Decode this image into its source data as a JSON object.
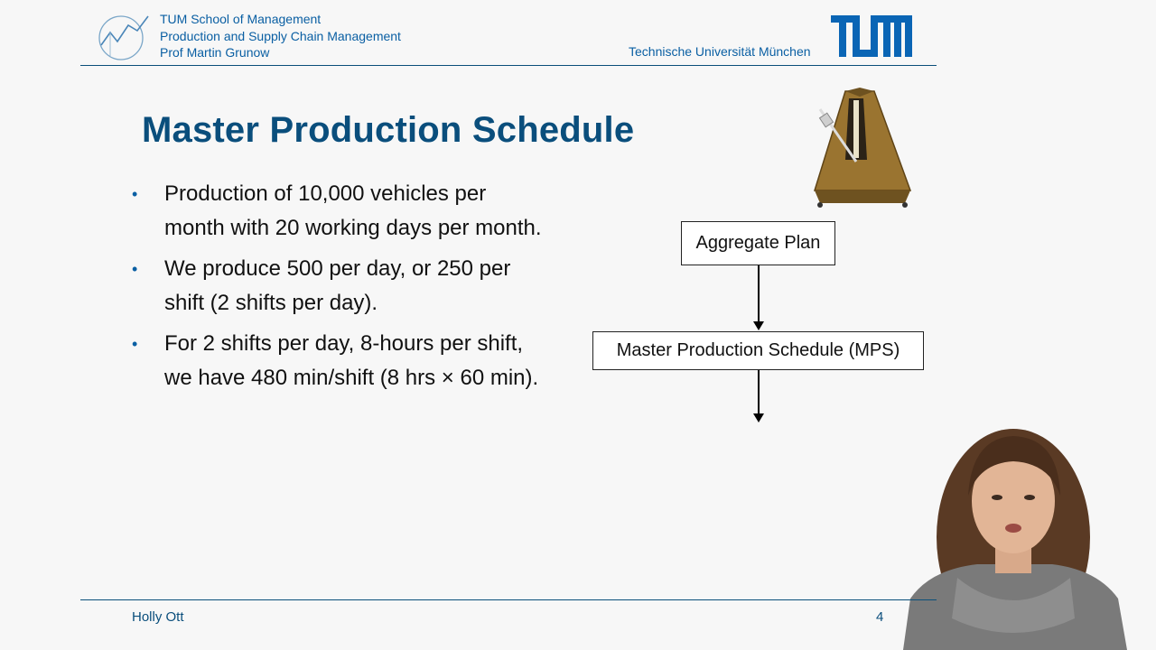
{
  "header": {
    "line1": "TUM School of Management",
    "line2": "Production and Supply Chain Management",
    "line3": "Prof Martin Grunow",
    "university": "Technische Universität München",
    "logo_text": "TUM"
  },
  "slide": {
    "title": "Master Production Schedule",
    "bullets": [
      {
        "line1": "Production of 10,000 vehicles per",
        "line2": "month with 20 working days per month."
      },
      {
        "line1": "We produce 500 per day, or 250 per",
        "line2": "shift (2 shifts per day)."
      },
      {
        "line1": "For 2 shifts per day, 8-hours per shift,",
        "line2": "we have 480 min/shift (8 hrs × 60 min)."
      }
    ],
    "bullet_symbol": "•",
    "diagram": {
      "box1": "Aggregate Plan",
      "box2": "Master Production Schedule (MPS)"
    }
  },
  "footer": {
    "presenter": "Holly Ott",
    "page": "4"
  },
  "colors": {
    "brand_blue": "#0a5fa3",
    "title_blue": "#0a4e7c"
  }
}
